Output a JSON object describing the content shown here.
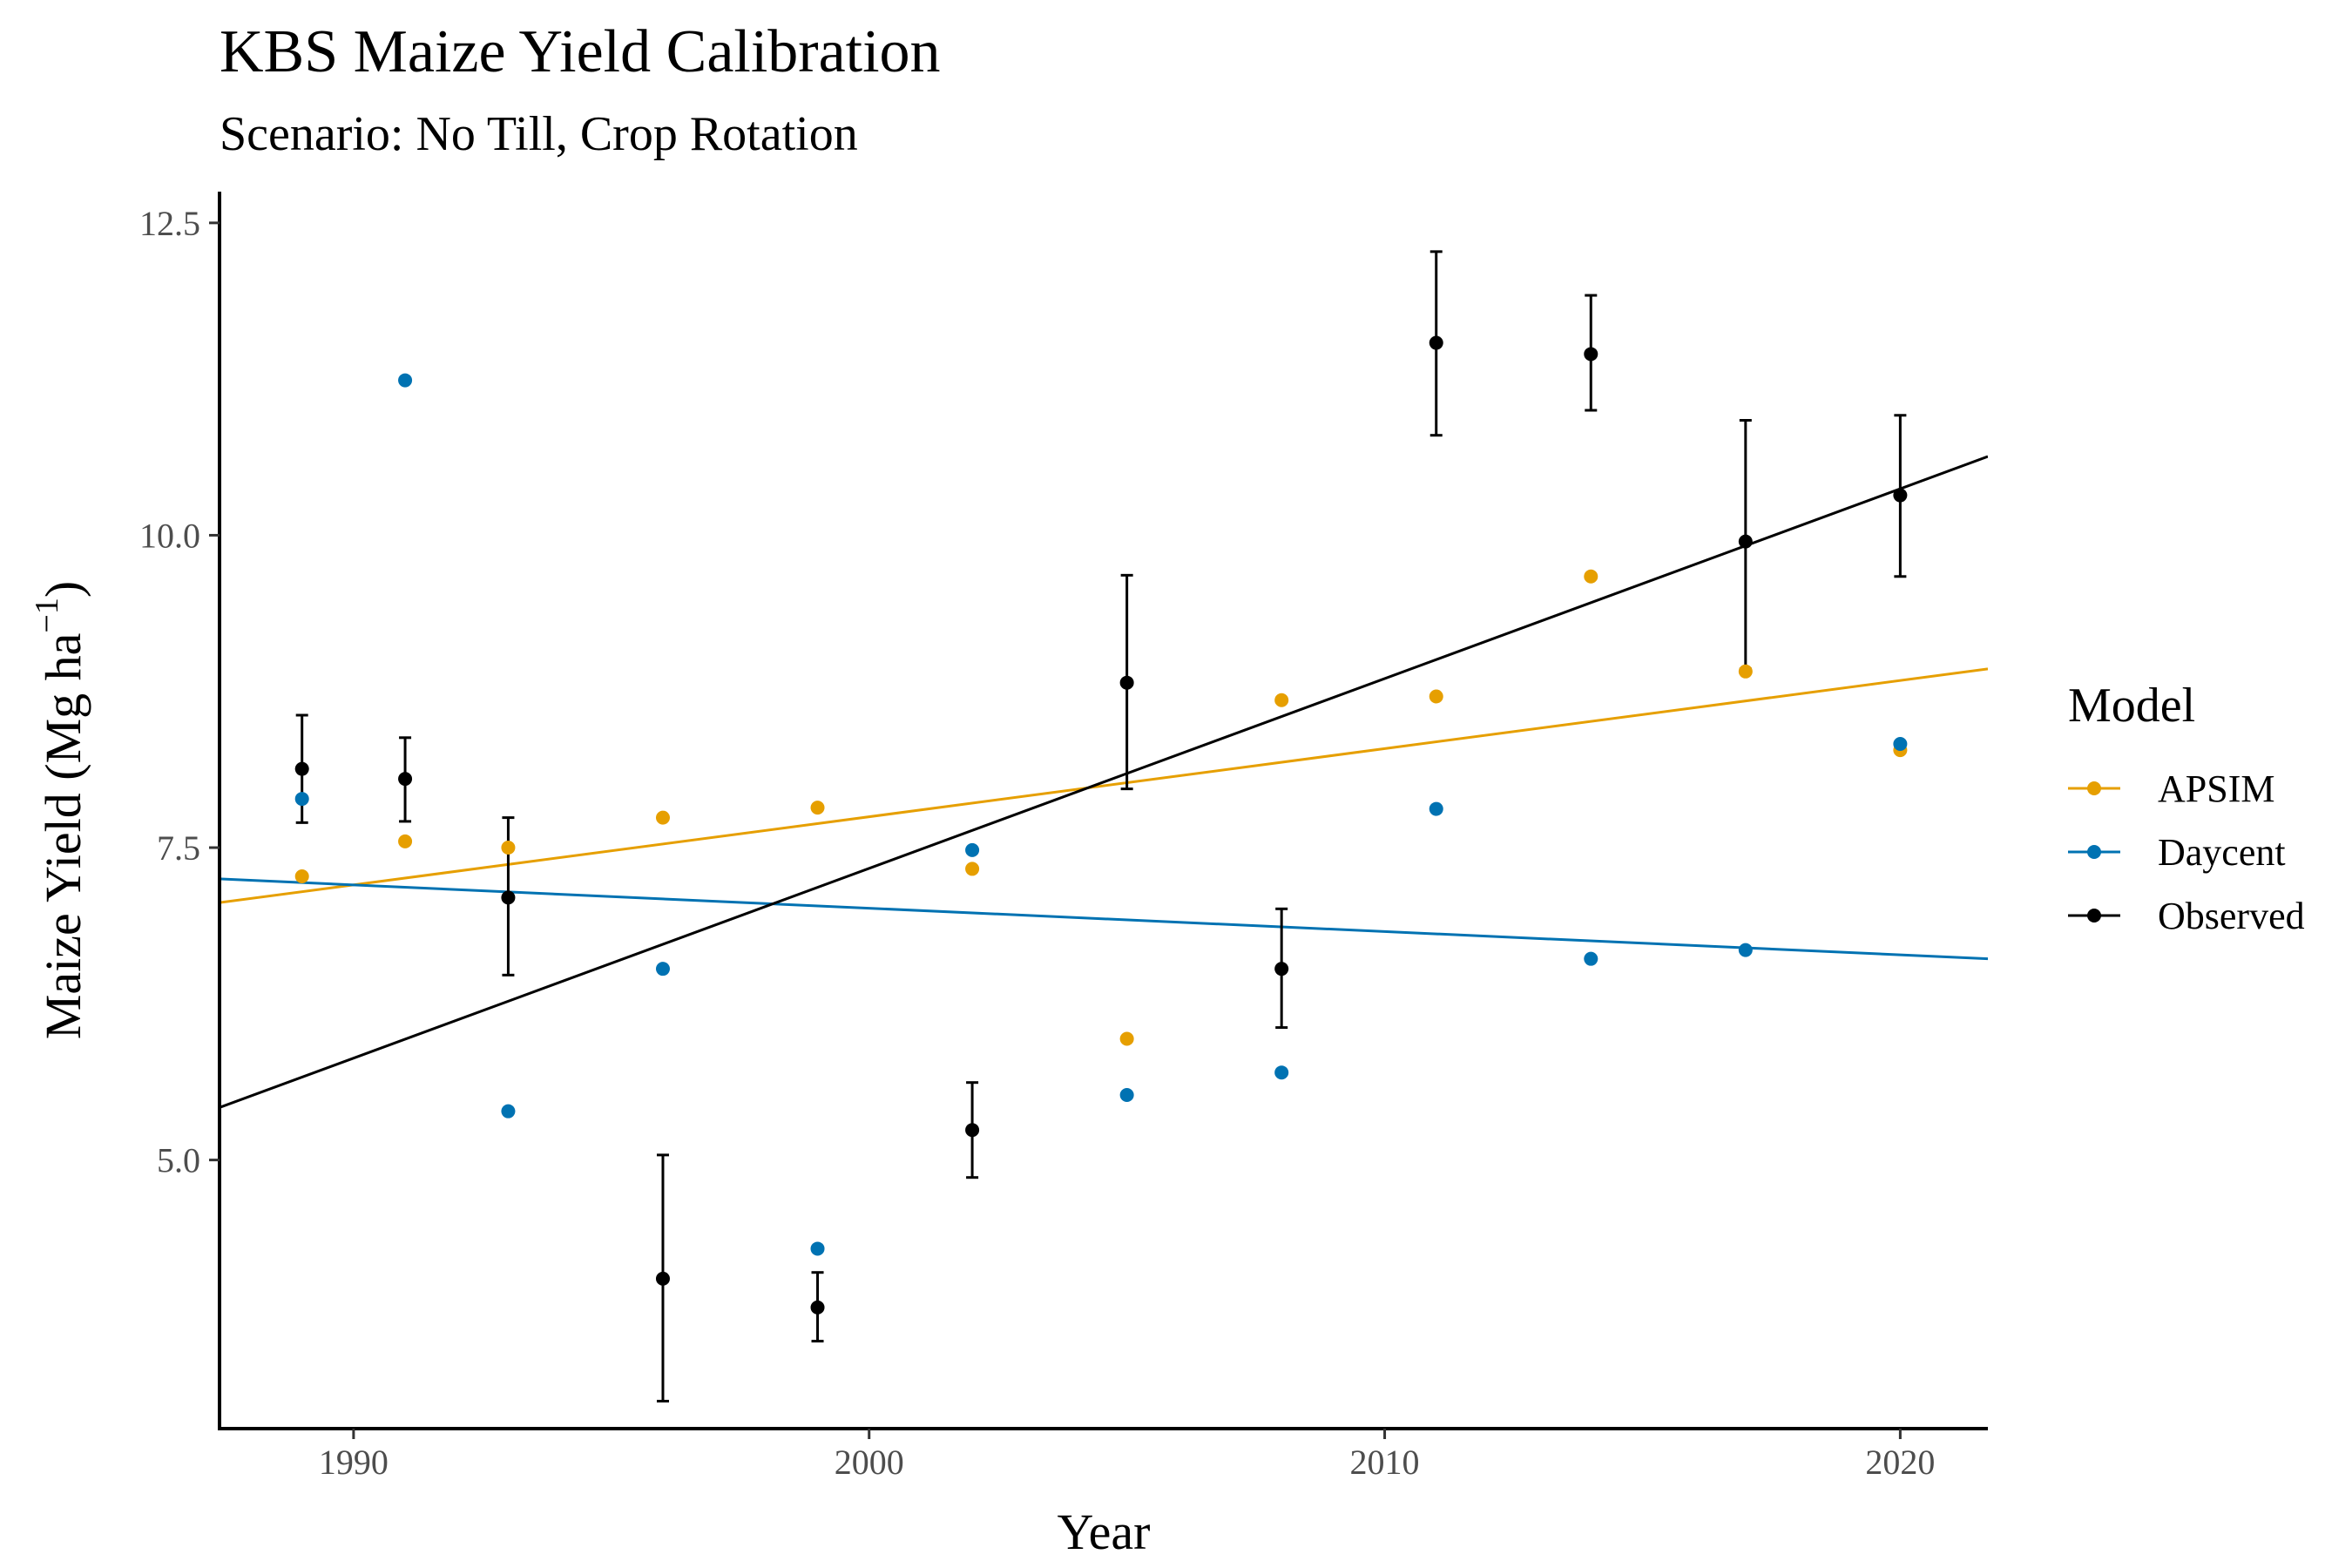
{
  "chart_data": {
    "type": "scatter",
    "title": "KBS Maize Yield Calibration",
    "subtitle": "Scenario: No Till, Crop Rotation",
    "xlabel": "Year",
    "ylabel_main": "Maize Yield (Mg ha",
    "ylabel_sup": "−1",
    "ylabel_close": ")",
    "xlim": [
      1987.4,
      2021.7
    ],
    "ylim": [
      2.85,
      12.75
    ],
    "xticks": [
      1990,
      2000,
      2010,
      2020
    ],
    "xtick_labels": [
      "1990",
      "2000",
      "2010",
      "2020"
    ],
    "yticks": [
      5.0,
      7.5,
      10.0,
      12.5
    ],
    "ytick_labels": [
      "5.0",
      "7.5",
      "10.0",
      "12.5"
    ],
    "grid": false,
    "legend": {
      "title": "Model",
      "position": "right",
      "entries": [
        "APSIM",
        "Daycent",
        "Observed"
      ]
    },
    "series": [
      {
        "name": "APSIM",
        "color": "#E69F00",
        "x": [
          1989,
          1991,
          1993,
          1996,
          1999,
          2002,
          2005,
          2008,
          2011,
          2014,
          2017,
          2020
        ],
        "y": [
          7.27,
          7.55,
          7.5,
          7.74,
          7.82,
          7.33,
          5.97,
          8.68,
          8.71,
          9.67,
          8.91,
          8.28
        ],
        "trend": {
          "x": [
            1987.4,
            2021.7
          ],
          "y": [
            7.06,
            8.93
          ]
        }
      },
      {
        "name": "Daycent",
        "color": "#0072B2",
        "x": [
          1989,
          1991,
          1993,
          1996,
          1999,
          2002,
          2005,
          2008,
          2011,
          2014,
          2017,
          2020
        ],
        "y": [
          7.89,
          11.24,
          5.39,
          6.53,
          4.29,
          7.48,
          5.52,
          5.7,
          7.81,
          6.61,
          6.68,
          8.33
        ],
        "trend": {
          "x": [
            1987.4,
            2021.7
          ],
          "y": [
            7.25,
            6.61
          ]
        }
      },
      {
        "name": "Observed",
        "color": "#000000",
        "x": [
          1989,
          1991,
          1993,
          1996,
          1999,
          2002,
          2005,
          2008,
          2011,
          2014,
          2017,
          2020
        ],
        "y": [
          8.13,
          8.05,
          7.1,
          4.05,
          3.82,
          5.24,
          8.82,
          6.53,
          11.54,
          11.45,
          9.95,
          10.32
        ],
        "ymin": [
          7.7,
          7.71,
          6.48,
          3.07,
          3.55,
          4.86,
          7.97,
          6.06,
          10.8,
          11.0,
          8.93,
          9.67
        ],
        "ymax": [
          8.56,
          8.38,
          7.74,
          5.04,
          4.1,
          5.62,
          9.68,
          7.01,
          12.27,
          11.92,
          10.92,
          10.96
        ],
        "trend": {
          "x": [
            1987.4,
            2021.7
          ],
          "y": [
            5.42,
            10.63
          ]
        }
      }
    ]
  }
}
